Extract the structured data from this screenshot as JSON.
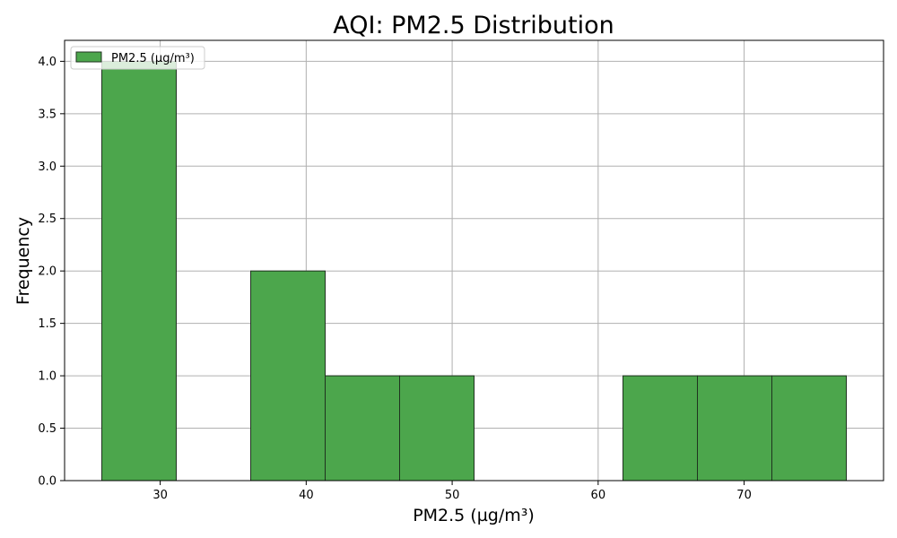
{
  "chart_data": {
    "type": "bar",
    "title": "AQI: PM2.5 Distribution",
    "xlabel": "PM2.5 (µg/m³)",
    "ylabel": "Frequency",
    "bins": [
      {
        "x0": 26.0,
        "x1": 31.1,
        "count": 4
      },
      {
        "x0": 31.1,
        "x1": 36.2,
        "count": 0
      },
      {
        "x0": 36.2,
        "x1": 41.3,
        "count": 2
      },
      {
        "x0": 41.3,
        "x1": 46.4,
        "count": 1
      },
      {
        "x0": 46.4,
        "x1": 51.5,
        "count": 1
      },
      {
        "x0": 51.5,
        "x1": 56.6,
        "count": 0
      },
      {
        "x0": 56.6,
        "x1": 61.7,
        "count": 0
      },
      {
        "x0": 61.7,
        "x1": 66.8,
        "count": 1
      },
      {
        "x0": 66.8,
        "x1": 71.9,
        "count": 1
      },
      {
        "x0": 71.9,
        "x1": 77.0,
        "count": 1
      }
    ],
    "series": [
      {
        "name": "PM2.5 (µg/m³)",
        "color": "#4ca64c"
      }
    ],
    "xlim": [
      23.45,
      79.55
    ],
    "ylim": [
      0,
      4.2
    ],
    "xticks": [
      30,
      40,
      50,
      60,
      70
    ],
    "yticks": [
      0.0,
      0.5,
      1.0,
      1.5,
      2.0,
      2.5,
      3.0,
      3.5,
      4.0
    ],
    "grid": true,
    "legend_placement": "top-left",
    "colors": {
      "bar_fill": "#4ca64c",
      "bar_edge": "#1f331f",
      "grid": "#b0b0b0",
      "axis": "#000000"
    }
  }
}
